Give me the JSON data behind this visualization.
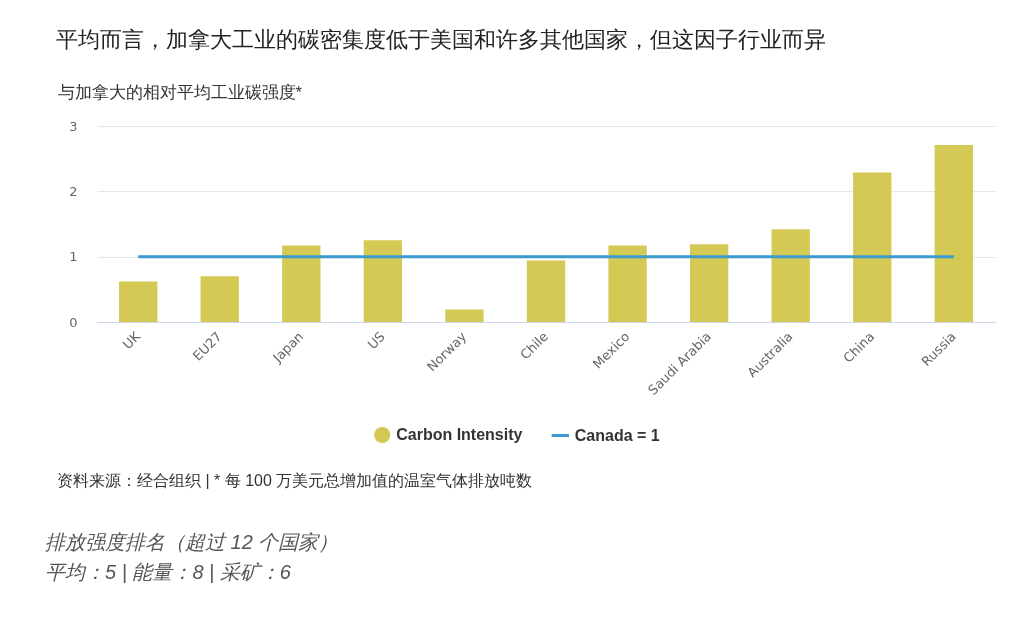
{
  "chart_data": {
    "type": "bar",
    "title": "平均而言，加拿大工业的碳密集度低于美国和许多其他国家，但这因子行业而异",
    "ylabel": "与加拿大的相对平均工业碳强度*",
    "categories": [
      "UK",
      "EU27",
      "Japan",
      "US",
      "Norway",
      "Chile",
      "Mexico",
      "Saudi Arabia",
      "Australia",
      "China",
      "Russia"
    ],
    "series": [
      {
        "name": "Carbon Intensity",
        "color": "#d4c955",
        "values": [
          0.62,
          0.7,
          1.17,
          1.25,
          0.19,
          0.94,
          1.17,
          1.19,
          1.42,
          2.29,
          2.71
        ]
      },
      {
        "name": "Canada = 1",
        "type": "line",
        "color": "#3a9bcc",
        "values": [
          1,
          1,
          1,
          1,
          1,
          1,
          1,
          1,
          1,
          1,
          1
        ]
      }
    ],
    "ylim": [
      0,
      3
    ],
    "yticks": [
      0,
      1,
      2,
      3
    ],
    "grid": "y",
    "legend": "bottom",
    "annotations": [
      "资料来源：经合组织 | * 每 100 万美元总增加值的温室气体排放吨数",
      "排放强度排名（超过 12 个国家）",
      "平均：5 | 能量：8 | 采矿：6"
    ]
  }
}
